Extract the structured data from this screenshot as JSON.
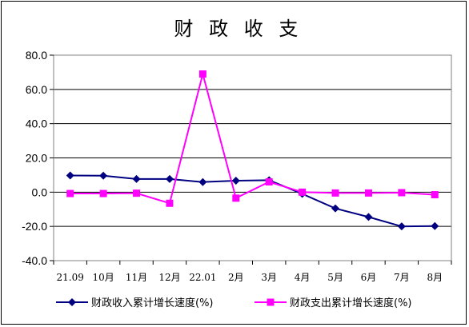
{
  "chart_data": {
    "type": "line",
    "title": "财 政 收 支",
    "categories": [
      "21.09",
      "10月",
      "11月",
      "12月",
      "22.01",
      "2月",
      "3月",
      "4月",
      "5月",
      "6月",
      "7月",
      "8月"
    ],
    "ylim": [
      -40,
      80
    ],
    "yticks": [
      "80.0",
      "60.0",
      "40.0",
      "20.0",
      "0.0",
      "-20.0",
      "-40.0"
    ],
    "grid": true,
    "legend": "bottom",
    "series": [
      {
        "name": "财政收入累计增长速度(%)",
        "color": "#000080",
        "marker": "diamond",
        "values": [
          9.7,
          9.6,
          7.7,
          7.7,
          5.9,
          6.7,
          7.0,
          -1.0,
          -9.5,
          -14.5,
          -20.0,
          -19.8
        ]
      },
      {
        "name": "财政支出累计增长速度(%)",
        "color": "#ff00ff",
        "marker": "square",
        "values": [
          -0.8,
          -0.8,
          -0.6,
          -6.5,
          69.0,
          -3.5,
          6.0,
          0.0,
          -0.5,
          -0.5,
          -0.3,
          -1.5
        ]
      }
    ]
  }
}
